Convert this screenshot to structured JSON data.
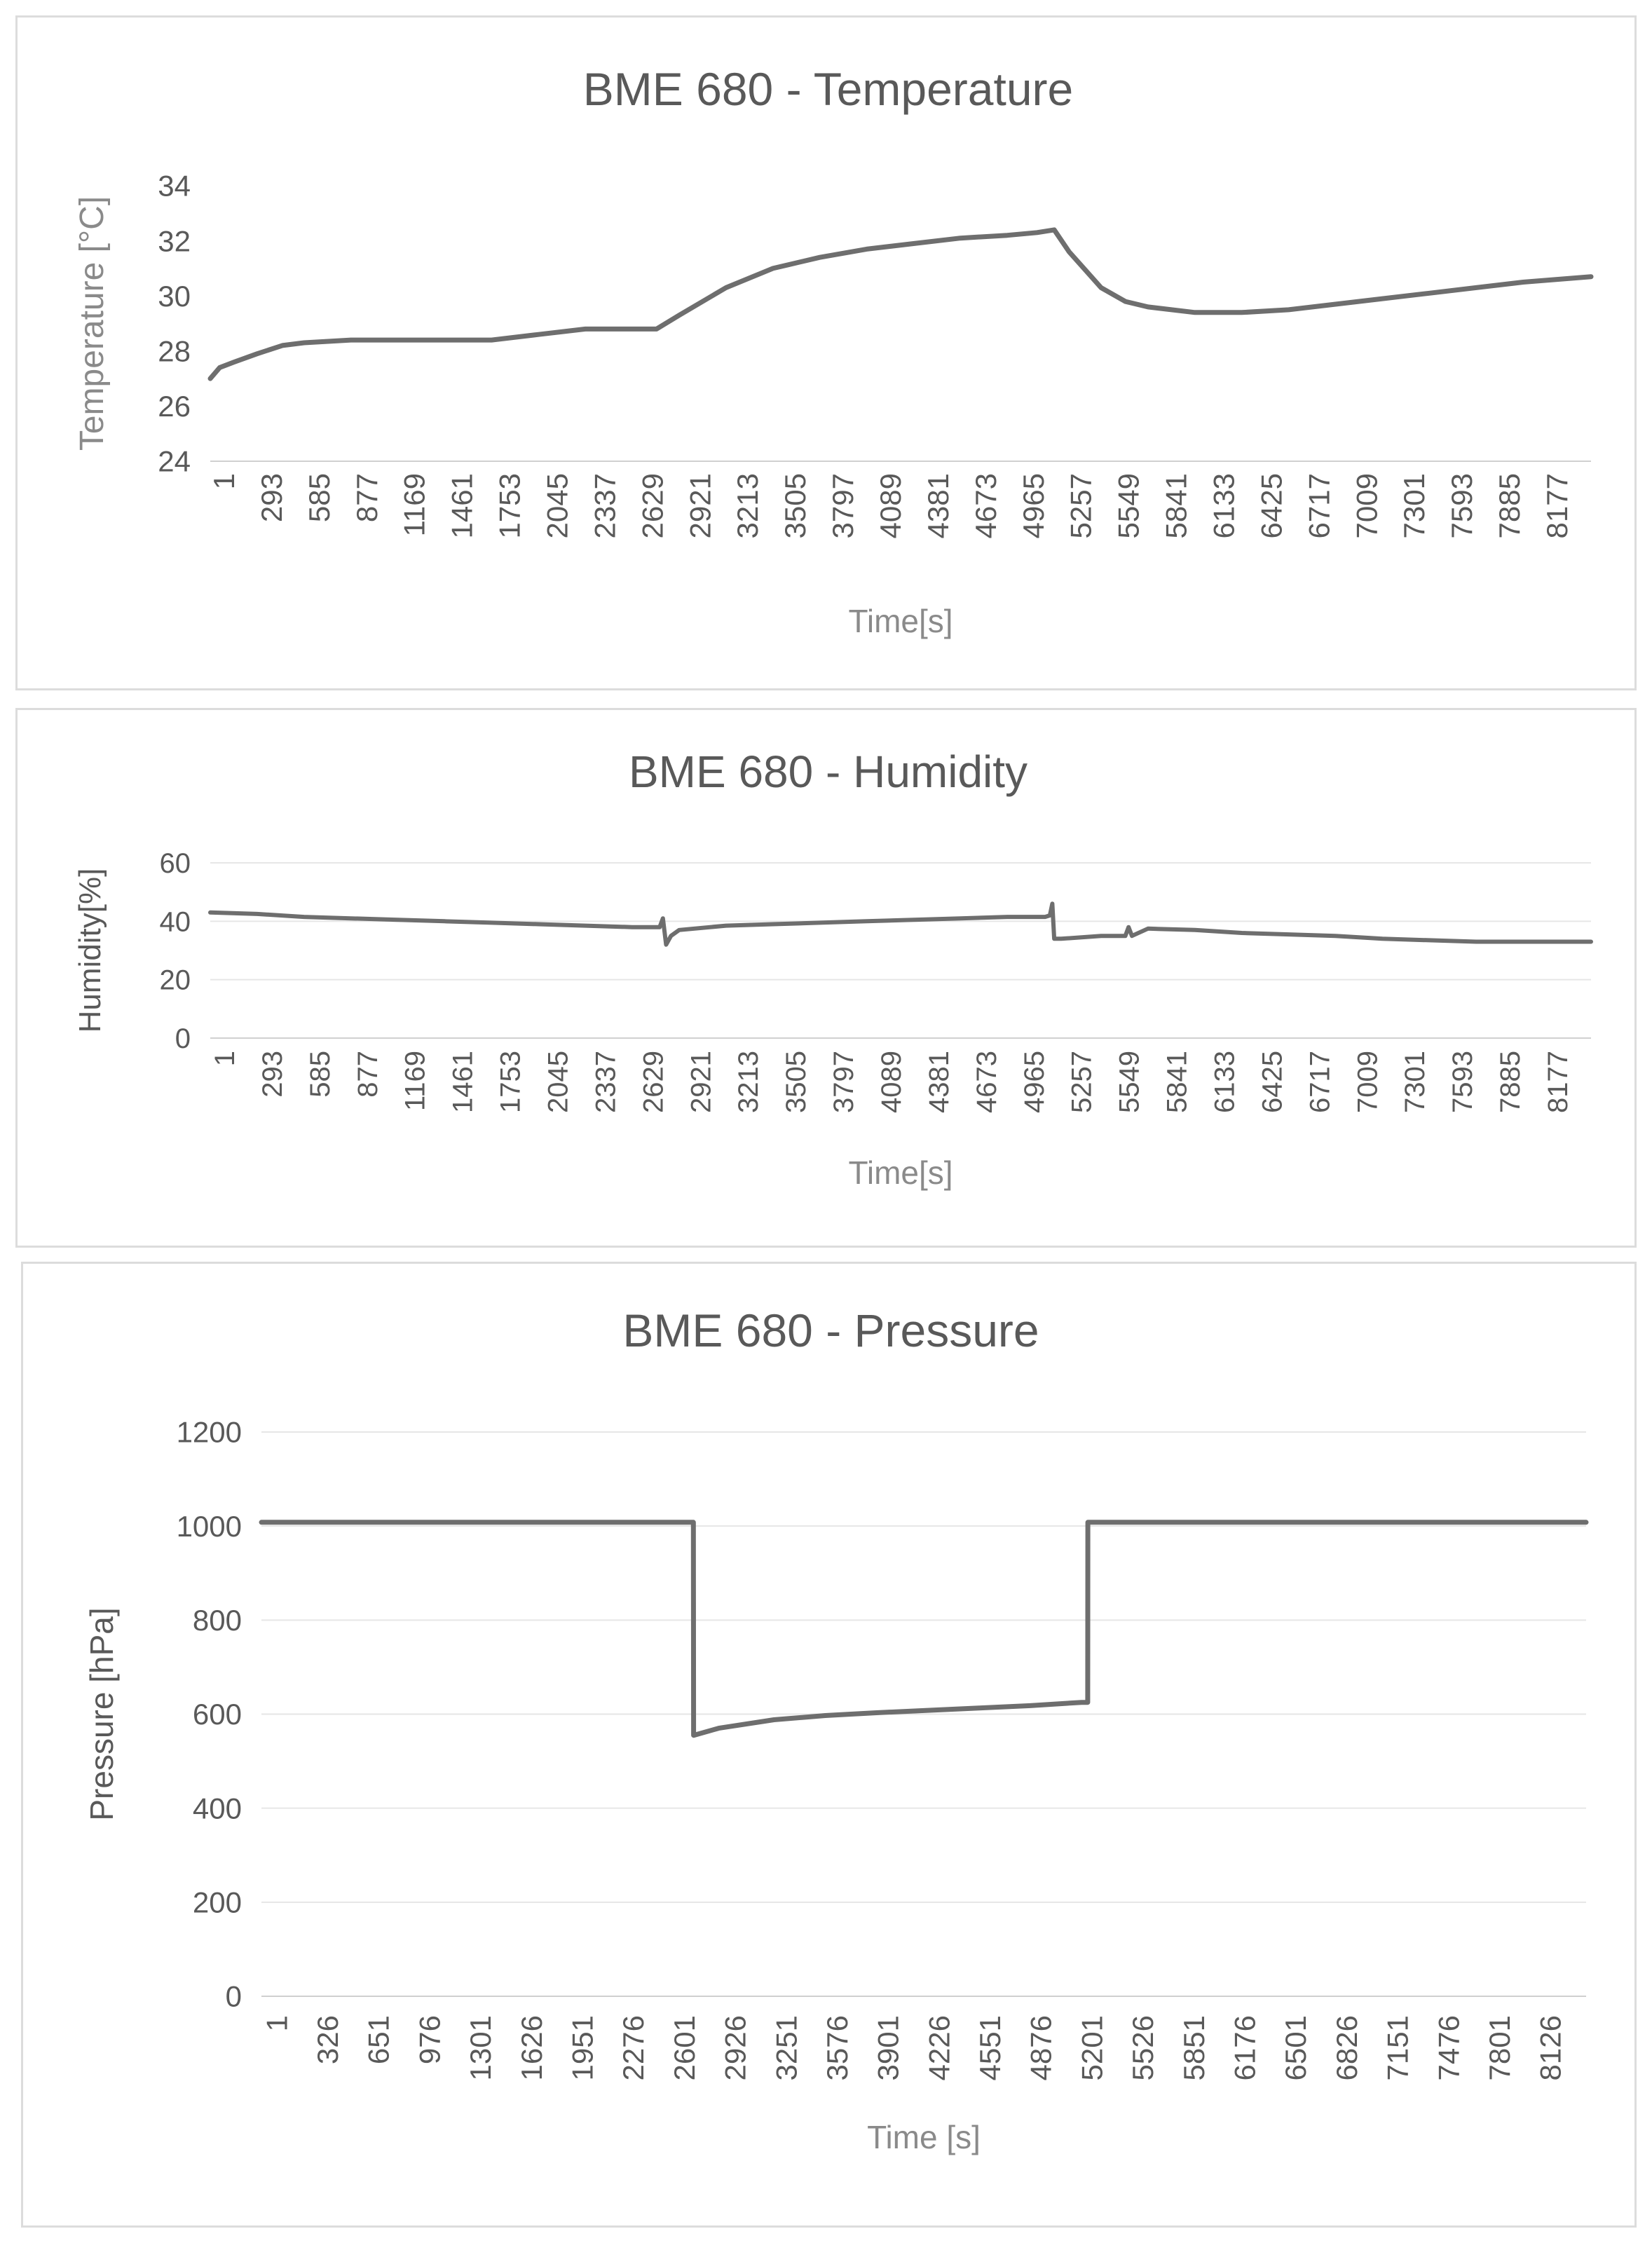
{
  "chart_data": [
    {
      "type": "line",
      "title": "BME 680 - Temperature",
      "xlabel": "Time[s]",
      "ylabel": "Temperature [°C]",
      "ylim": [
        24,
        34
      ],
      "yticks": [
        24,
        26,
        28,
        30,
        32,
        34
      ],
      "gridlines": false,
      "xlim": [
        1,
        8600
      ],
      "categories": [
        "1",
        "293",
        "585",
        "877",
        "1169",
        "1461",
        "1753",
        "2045",
        "2337",
        "2629",
        "2921",
        "3213",
        "3505",
        "3797",
        "4089",
        "4381",
        "4673",
        "4965",
        "5257",
        "5549",
        "5841",
        "6133",
        "6425",
        "6717",
        "7009",
        "7301",
        "7593",
        "7885",
        "8177"
      ],
      "series": [
        {
          "name": "Temperature",
          "x": [
            1,
            60,
            150,
            293,
            450,
            585,
            877,
            1169,
            1461,
            1753,
            2045,
            2337,
            2629,
            2780,
            2921,
            3213,
            3505,
            3797,
            4089,
            4381,
            4673,
            4965,
            5150,
            5257,
            5350,
            5549,
            5700,
            5841,
            6133,
            6425,
            6717,
            7009,
            7301,
            7593,
            7885,
            8177,
            8600
          ],
          "values": [
            27.0,
            27.4,
            27.6,
            27.9,
            28.2,
            28.3,
            28.4,
            28.4,
            28.4,
            28.4,
            28.6,
            28.8,
            28.8,
            28.8,
            29.3,
            30.3,
            31.0,
            31.4,
            31.7,
            31.9,
            32.1,
            32.2,
            32.3,
            32.4,
            31.6,
            30.3,
            29.8,
            29.6,
            29.4,
            29.4,
            29.5,
            29.7,
            29.9,
            30.1,
            30.3,
            30.5,
            30.7
          ]
        }
      ]
    },
    {
      "type": "line",
      "title": "BME 680 - Humidity",
      "xlabel": "Time[s]",
      "ylabel": "Humidity[%]",
      "ylim": [
        0,
        60
      ],
      "yticks": [
        0,
        20,
        40,
        60
      ],
      "gridlines": true,
      "xlim": [
        1,
        8600
      ],
      "categories": [
        "1",
        "293",
        "585",
        "877",
        "1169",
        "1461",
        "1753",
        "2045",
        "2337",
        "2629",
        "2921",
        "3213",
        "3505",
        "3797",
        "4089",
        "4381",
        "4673",
        "4965",
        "5257",
        "5549",
        "5841",
        "6133",
        "6425",
        "6717",
        "7009",
        "7301",
        "7593",
        "7885",
        "8177"
      ],
      "series": [
        {
          "name": "Humidity",
          "x": [
            1,
            293,
            585,
            877,
            1169,
            1461,
            1753,
            2045,
            2337,
            2629,
            2800,
            2820,
            2840,
            2870,
            2921,
            3213,
            3505,
            3797,
            4089,
            4381,
            4673,
            4965,
            5200,
            5230,
            5245,
            5257,
            5300,
            5549,
            5700,
            5720,
            5741,
            5841,
            6133,
            6425,
            6717,
            7009,
            7301,
            7593,
            7885,
            8177,
            8600
          ],
          "values": [
            43,
            42.5,
            41.5,
            41,
            40.5,
            40,
            39.5,
            39,
            38.5,
            38,
            38,
            41,
            32,
            35,
            37,
            38.5,
            39,
            39.5,
            40,
            40.5,
            41,
            41.5,
            41.5,
            42,
            46,
            34,
            34,
            35,
            35,
            38,
            35,
            37.5,
            37,
            36,
            35.5,
            35,
            34,
            33.5,
            33,
            33,
            33
          ]
        }
      ]
    },
    {
      "type": "line",
      "title": "BME 680 - Pressure",
      "xlabel": "Time [s]",
      "ylabel": "Pressure [hPa]",
      "ylim": [
        0,
        1200
      ],
      "yticks": [
        0,
        200,
        400,
        600,
        800,
        1000,
        1200
      ],
      "gridlines": true,
      "xlim": [
        1,
        8400
      ],
      "categories": [
        "1",
        "326",
        "651",
        "976",
        "1301",
        "1626",
        "1951",
        "2276",
        "2601",
        "2926",
        "3251",
        "3576",
        "3901",
        "4226",
        "4551",
        "4876",
        "5201",
        "5526",
        "5851",
        "6176",
        "6501",
        "6826",
        "7151",
        "7476",
        "7801",
        "8126"
      ],
      "series": [
        {
          "name": "Pressure",
          "x": [
            1,
            2601,
            2740,
            2741,
            2900,
            3251,
            3576,
            3901,
            4226,
            4551,
            4876,
            5201,
            5240,
            5241,
            5526,
            6501,
            7476,
            8400
          ],
          "values": [
            1008,
            1008,
            1008,
            555,
            570,
            588,
            597,
            603,
            608,
            613,
            618,
            625,
            625,
            1008,
            1008,
            1008,
            1008,
            1008
          ]
        }
      ]
    }
  ]
}
